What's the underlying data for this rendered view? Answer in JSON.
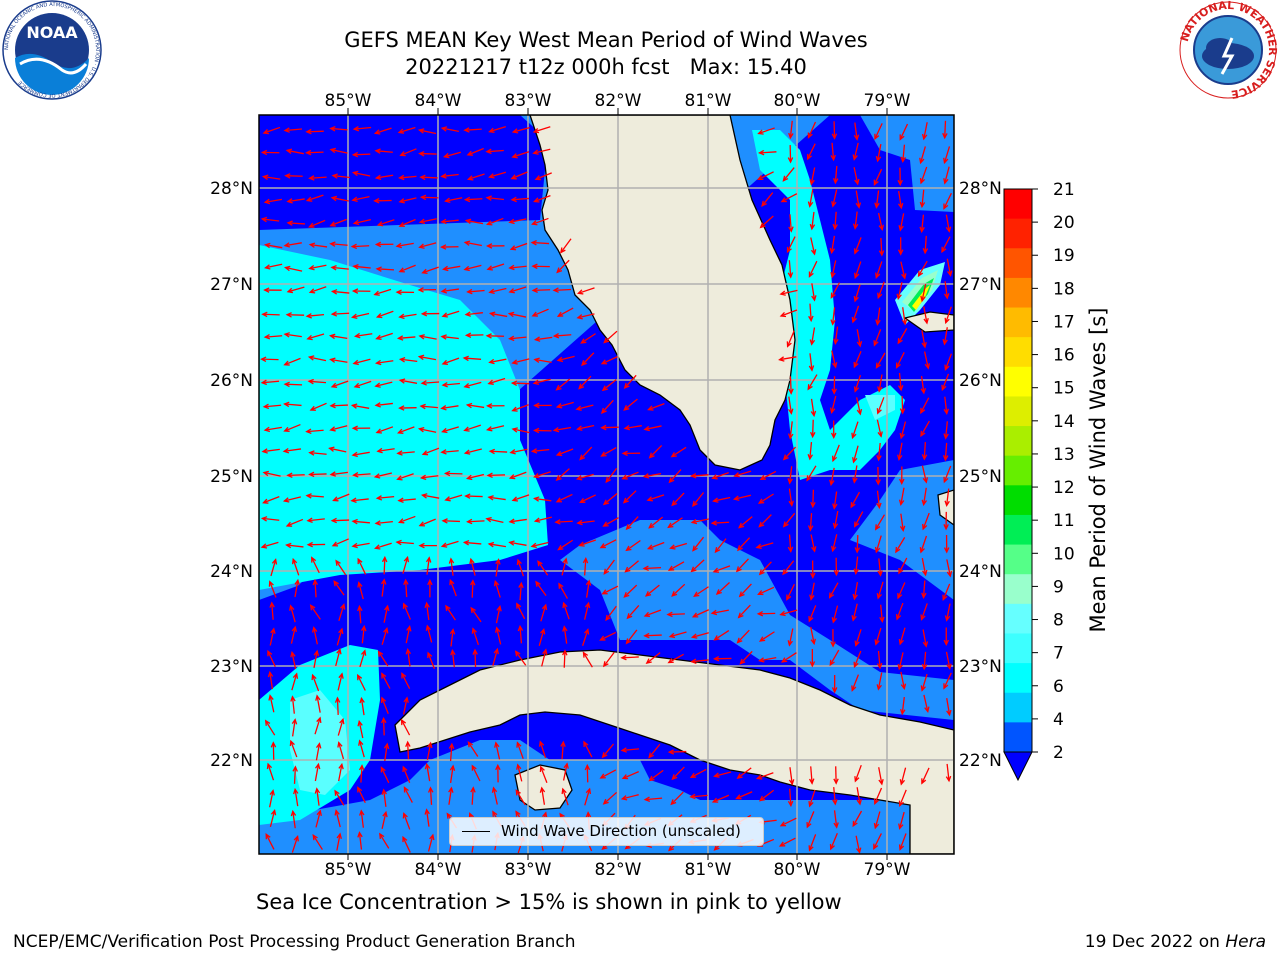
{
  "title": {
    "line1": "GEFS MEAN Key West Mean Period of Wind Waves",
    "line2": "20221217 t12z 000h fcst   Max: 15.40"
  },
  "logos": {
    "left": "NOAA",
    "left_ring_text": "NATIONAL OCEANIC AND ATMOSPHERIC ADMINISTRATION · U.S. DEPARTMENT OF COMMERCE",
    "right_ring_text": "NATIONAL WEATHER SERVICE"
  },
  "map": {
    "lon_labels": [
      "85°W",
      "84°W",
      "83°W",
      "82°W",
      "81°W",
      "80°W",
      "79°W"
    ],
    "lat_labels": [
      "28°N",
      "27°N",
      "26°N",
      "25°N",
      "24°N",
      "23°N",
      "22°N"
    ],
    "colors": {
      "land": "#eeecdc",
      "ocean_2_4": "#0000ff",
      "ocean_4_6": "#1f8fff",
      "ocean_6_8": "#00ffff",
      "ocean_8_9": "#5affff",
      "arrows": "#ff0000",
      "grid": "#b0b0b0"
    },
    "legend_label": "Wind Wave Direction (unscaled)"
  },
  "colorbar": {
    "title": "Mean Period of Wind Waves [s]",
    "ticks": [
      "2",
      "4",
      "6",
      "7",
      "8",
      "9",
      "10",
      "11",
      "12",
      "13",
      "14",
      "15",
      "16",
      "17",
      "18",
      "19",
      "20",
      "21"
    ],
    "colors": [
      "#0055ff",
      "#00ccff",
      "#00ffff",
      "#3dffff",
      "#66ffff",
      "#99ffcc",
      "#55ff88",
      "#00ee55",
      "#00dd00",
      "#66ee00",
      "#aaee00",
      "#ddee00",
      "#ffff00",
      "#ffdd00",
      "#ffbb00",
      "#ff8800",
      "#ff5500",
      "#ff2200",
      "#ff0000"
    ],
    "extend_color": "#0000ff"
  },
  "sea_ice_note": "Sea Ice Concentration > 15% is shown in pink to yellow",
  "footer": {
    "left": "NCEP/EMC/Verification Post Processing Product Generation Branch",
    "right_date": "19 Dec 2022 on",
    "right_host": "Hera"
  }
}
